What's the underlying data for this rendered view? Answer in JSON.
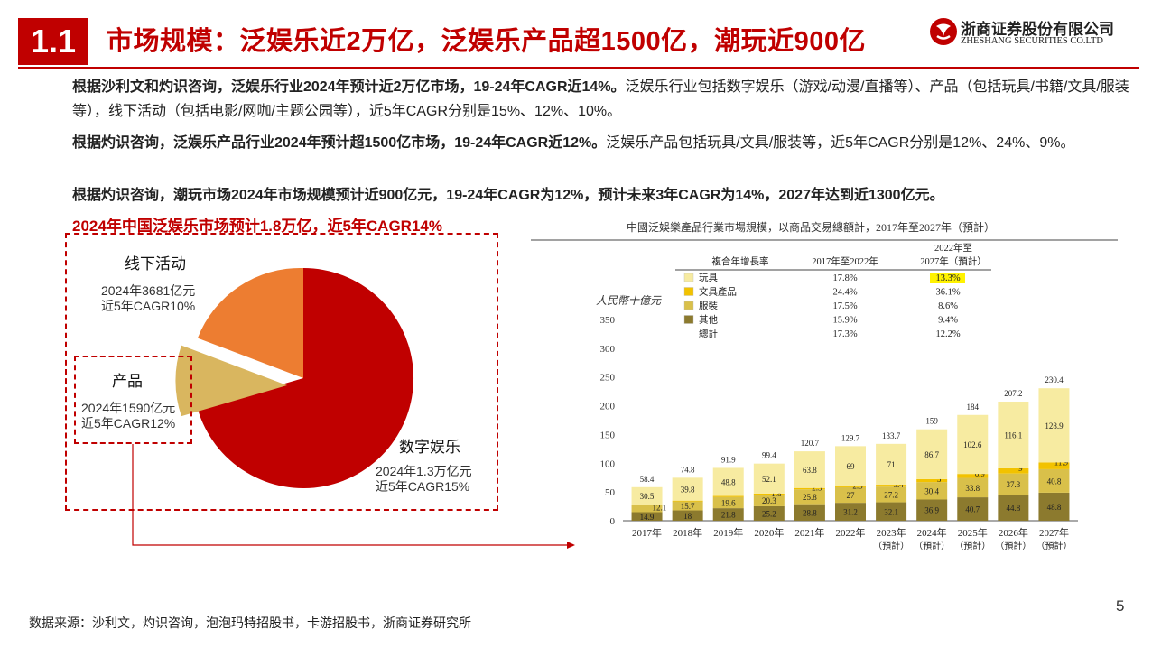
{
  "header": {
    "section_number": "1.1",
    "title": "市场规模：泛娱乐近2万亿，泛娱乐产品超1500亿，潮玩近900亿",
    "logo_cn": "浙商证券股份有限公司",
    "logo_en": "ZHESHANG SECURITIES CO.LTD"
  },
  "paragraphs": [
    {
      "strong": "根据沙利文和灼识咨询，泛娱乐行业2024年预计近2万亿市场，19-24年CAGR近14%。",
      "rest": "泛娱乐行业包括数字娱乐（游戏/动漫/直播等）、产品（包括玩具/书籍/文具/服装等），线下活动（包括电影/网咖/主题公园等），近5年CAGR分别是15%、12%、10%。"
    },
    {
      "strong": "根据灼识咨询，泛娱乐产品行业2024年预计超1500亿市场，19-24年CAGR近12%。",
      "rest": "泛娱乐产品包括玩具/文具/服装等，近5年CAGR分别是12%、24%、9%。"
    },
    {
      "strong": "根据灼识咨询，潮玩市场2024年市场规模预计近900亿元，19-24年CAGR为12%，预计未来3年CAGR为14%，2027年达到近1300亿元。",
      "rest": ""
    }
  ],
  "pie": {
    "title": "2024年中国泛娱乐市场预计1.8万亿，近5年CAGR14%",
    "colors": {
      "digital": "#c00000",
      "offline": "#ed7d31",
      "product": "#d9b65f"
    },
    "slices": [
      {
        "name": "数字娱乐",
        "value_desc": "2024年1.3万亿元",
        "cagr": "近5年CAGR15%"
      },
      {
        "name": "线下活动",
        "value_desc": "2024年3681亿元",
        "cagr": "近5年CAGR10%"
      },
      {
        "name": "产品",
        "value_desc": "2024年1590亿元",
        "cagr": "近5年CAGR12%"
      }
    ]
  },
  "chart_data": {
    "type": "bar",
    "title": "中國泛娛樂產品行業市場規模，以商品交易總額計，2017年至2027年（預計）",
    "ylabel": "人民幣十億元",
    "ylim": [
      0,
      350
    ],
    "yticks": [
      0,
      50,
      100,
      150,
      200,
      250,
      300,
      350
    ],
    "categories": [
      "2017年",
      "2018年",
      "2019年",
      "2020年",
      "2021年",
      "2022年",
      "2023年",
      "2024年",
      "2025年",
      "2026年",
      "2027年"
    ],
    "category_notes": [
      "",
      "",
      "",
      "",
      "",
      "",
      "（預計）",
      "（預計）",
      "（預計）",
      "（預計）",
      "（預計）"
    ],
    "stacked": true,
    "series": [
      {
        "name": "其他",
        "color": "#8c7a2e",
        "values": [
          14.9,
          18.0,
          21.8,
          25.2,
          28.8,
          31.2,
          32.1,
          36.9,
          40.7,
          44.8,
          48.8
        ]
      },
      {
        "name": "服裝",
        "color": "#d9c04a",
        "values": [
          12.1,
          15.7,
          19.6,
          20.3,
          25.8,
          27.0,
          27.2,
          30.4,
          33.8,
          37.3,
          40.8
        ]
      },
      {
        "name": "文具產品",
        "color": "#f2c200",
        "values": [
          0.9,
          1.3,
          1.7,
          1.8,
          2.3,
          2.5,
          3.4,
          5.0,
          6.9,
          9.0,
          11.9
        ]
      },
      {
        "name": "玩具",
        "color": "#f7eba1",
        "values": [
          30.5,
          39.8,
          48.8,
          52.1,
          63.8,
          69.0,
          71.0,
          86.7,
          102.6,
          116.1,
          128.9
        ]
      }
    ],
    "totals": [
      58.4,
      74.8,
      91.9,
      99.4,
      120.7,
      129.7,
      133.7,
      159.0,
      184.0,
      207.2,
      230.4
    ],
    "legend_table": {
      "col_header_1": "複合年增長率",
      "col_header_2": "2017年至2022年",
      "col_header_3_line1": "2022年至",
      "col_header_3_line2": "2027年（預計）",
      "rows": [
        {
          "name": "玩具",
          "color": "#f7eba1",
          "cagr_1": "17.8%",
          "cagr_2": "13.3%"
        },
        {
          "name": "文具產品",
          "color": "#f2c200",
          "cagr_1": "24.4%",
          "cagr_2": "36.1%"
        },
        {
          "name": "服裝",
          "color": "#d9c04a",
          "cagr_1": "17.5%",
          "cagr_2": "8.6%"
        },
        {
          "name": "其他",
          "color": "#8c7a2e",
          "cagr_1": "15.9%",
          "cagr_2": "9.4%"
        },
        {
          "name": "總計",
          "color": "",
          "cagr_1": "17.3%",
          "cagr_2": "12.2%"
        }
      ],
      "highlight_color": "#fff200"
    }
  },
  "footer": {
    "source": "数据来源：沙利文，灼识咨询，泡泡玛特招股书，卡游招股书，浙商证券研究所",
    "page_number": "5"
  },
  "colors": {
    "accent": "#c00000"
  }
}
